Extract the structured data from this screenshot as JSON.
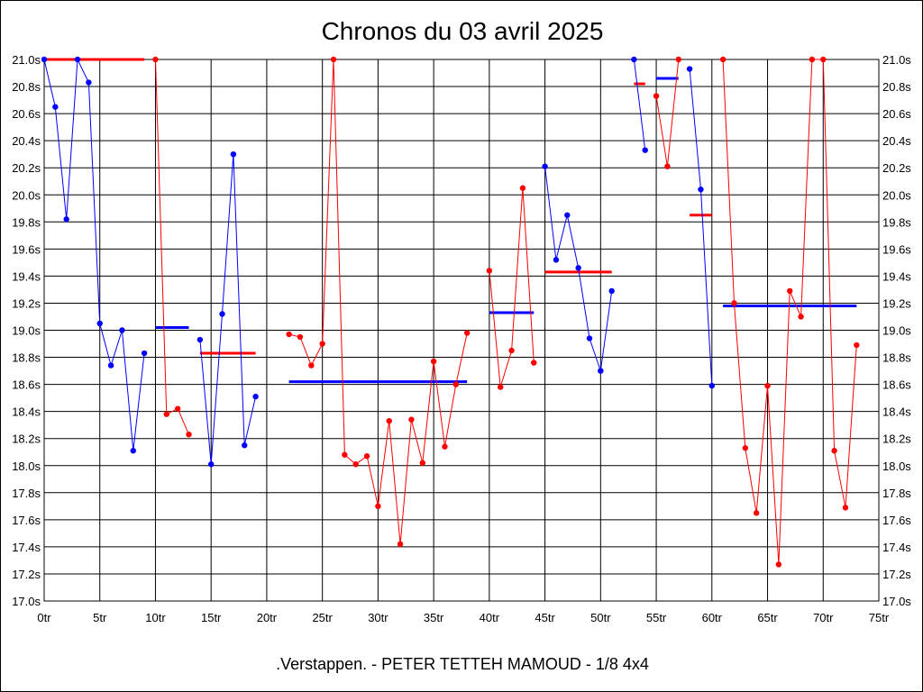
{
  "chart_data": {
    "type": "line",
    "title": "Chronos du 03 avril 2025",
    "subtitle": ".Verstappen. - PETER TETTEH MAMOUD - 1/8 4x4",
    "xlim": [
      0,
      75
    ],
    "ylim": [
      17.0,
      21.0
    ],
    "x_ticks": [
      0,
      5,
      10,
      15,
      20,
      25,
      30,
      35,
      40,
      45,
      50,
      55,
      60,
      65,
      70,
      75
    ],
    "x_tick_labels": [
      "0tr",
      "5tr",
      "10tr",
      "15tr",
      "20tr",
      "25tr",
      "30tr",
      "35tr",
      "40tr",
      "45tr",
      "50tr",
      "55tr",
      "60tr",
      "65tr",
      "70tr",
      "75tr"
    ],
    "y_ticks": [
      17.0,
      17.2,
      17.4,
      17.6,
      17.8,
      18.0,
      18.2,
      18.4,
      18.6,
      18.8,
      19.0,
      19.2,
      19.4,
      19.6,
      19.8,
      20.0,
      20.2,
      20.4,
      20.6,
      20.8,
      21.0
    ],
    "y_tick_labels": [
      "17.0s",
      "17.2s",
      "17.4s",
      "17.6s",
      "17.8s",
      "18.0s",
      "18.2s",
      "18.4s",
      "18.6s",
      "18.8s",
      "19.0s",
      "19.2s",
      "19.4s",
      "19.6s",
      "19.8s",
      "20.0s",
      "20.2s",
      "20.4s",
      "20.6s",
      "20.8s",
      "21.0s"
    ],
    "grid": true,
    "colors": {
      "blue": "#0000ff",
      "red": "#ff0000"
    },
    "segments": [
      {
        "color": "blue",
        "points": [
          [
            0,
            21.0
          ],
          [
            1,
            20.65
          ],
          [
            2,
            19.82
          ],
          [
            3,
            21.0
          ],
          [
            4,
            20.83
          ],
          [
            5,
            19.05
          ],
          [
            6,
            18.74
          ],
          [
            7,
            19.0
          ],
          [
            8,
            18.11
          ],
          [
            9,
            18.83
          ]
        ]
      },
      {
        "color": "red",
        "points": [
          [
            10,
            21.0
          ],
          [
            11,
            18.38
          ],
          [
            12,
            18.42
          ],
          [
            13,
            18.23
          ]
        ]
      },
      {
        "color": "blue",
        "points": [
          [
            14,
            18.93
          ],
          [
            15,
            18.01
          ],
          [
            16,
            19.12
          ],
          [
            17,
            20.3
          ],
          [
            18,
            18.15
          ],
          [
            19,
            18.51
          ]
        ]
      },
      {
        "color": "red",
        "points": [
          [
            22,
            18.97
          ],
          [
            23,
            18.95
          ],
          [
            24,
            18.74
          ],
          [
            25,
            18.9
          ],
          [
            26,
            21.0
          ],
          [
            27,
            18.08
          ],
          [
            28,
            18.01
          ],
          [
            29,
            18.07
          ],
          [
            30,
            17.7
          ],
          [
            31,
            18.33
          ],
          [
            32,
            17.42
          ],
          [
            33,
            18.34
          ],
          [
            34,
            18.02
          ],
          [
            35,
            18.77
          ],
          [
            36,
            18.14
          ],
          [
            37,
            18.6
          ],
          [
            38,
            18.98
          ]
        ]
      },
      {
        "color": "red",
        "points": [
          [
            40,
            19.44
          ],
          [
            41,
            18.58
          ],
          [
            42,
            18.85
          ],
          [
            43,
            20.05
          ],
          [
            44,
            18.76
          ]
        ]
      },
      {
        "color": "blue",
        "points": [
          [
            45,
            20.21
          ],
          [
            46,
            19.52
          ],
          [
            47,
            19.85
          ],
          [
            48,
            19.46
          ],
          [
            49,
            18.94
          ],
          [
            50,
            18.7
          ],
          [
            51,
            19.29
          ]
        ]
      },
      {
        "color": "blue",
        "points": [
          [
            53,
            21.0
          ],
          [
            54,
            20.33
          ]
        ]
      },
      {
        "color": "red",
        "points": [
          [
            55,
            20.73
          ],
          [
            56,
            20.21
          ],
          [
            57,
            21.0
          ]
        ]
      },
      {
        "color": "blue",
        "points": [
          [
            58,
            20.93
          ],
          [
            59,
            20.04
          ],
          [
            60,
            18.59
          ]
        ]
      },
      {
        "color": "red",
        "points": [
          [
            61,
            21.0
          ],
          [
            62,
            19.2
          ],
          [
            63,
            18.13
          ],
          [
            64,
            17.65
          ],
          [
            65,
            18.59
          ],
          [
            66,
            17.27
          ],
          [
            67,
            19.29
          ],
          [
            68,
            19.1
          ],
          [
            69,
            21.0
          ],
          [
            70,
            21.0
          ],
          [
            71,
            18.11
          ],
          [
            72,
            17.69
          ],
          [
            73,
            18.89
          ]
        ]
      }
    ],
    "averages": [
      {
        "color": "red",
        "x1": 0,
        "x2": 9,
        "y": 21.0
      },
      {
        "color": "blue",
        "x1": 10,
        "x2": 13,
        "y": 19.02
      },
      {
        "color": "red",
        "x1": 14,
        "x2": 19,
        "y": 18.83
      },
      {
        "color": "blue",
        "x1": 22,
        "x2": 38,
        "y": 18.62
      },
      {
        "color": "blue",
        "x1": 40,
        "x2": 44,
        "y": 19.13
      },
      {
        "color": "red",
        "x1": 45,
        "x2": 51,
        "y": 19.43
      },
      {
        "color": "red",
        "x1": 53,
        "x2": 54,
        "y": 20.82
      },
      {
        "color": "blue",
        "x1": 55,
        "x2": 57,
        "y": 20.86
      },
      {
        "color": "red",
        "x1": 58,
        "x2": 60,
        "y": 19.85
      },
      {
        "color": "blue",
        "x1": 61,
        "x2": 73,
        "y": 19.18
      }
    ]
  }
}
